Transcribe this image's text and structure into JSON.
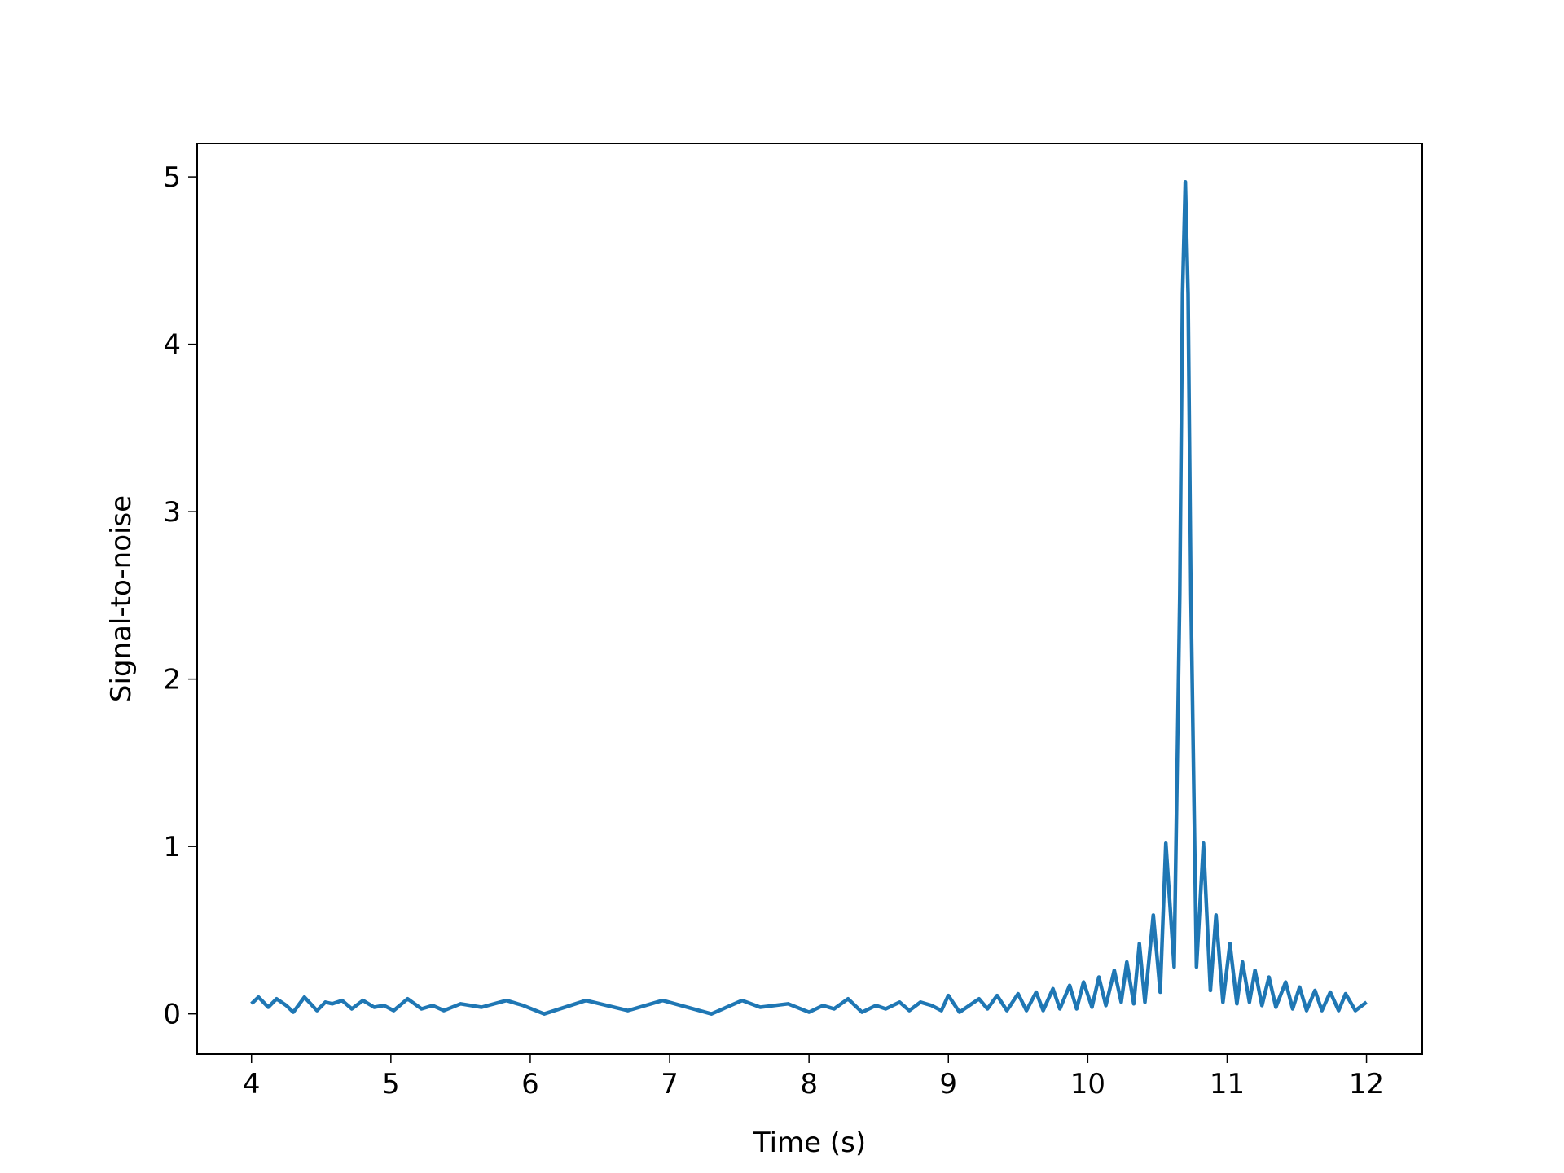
{
  "chart_data": {
    "type": "line",
    "xlabel": "Time (s)",
    "ylabel": "Signal-to-noise",
    "x": [
      4.0,
      4.05,
      4.12,
      4.18,
      4.25,
      4.3,
      4.38,
      4.47,
      4.53,
      4.58,
      4.65,
      4.72,
      4.8,
      4.88,
      4.95,
      5.02,
      5.12,
      5.22,
      5.3,
      5.38,
      5.5,
      5.65,
      5.83,
      5.95,
      6.1,
      6.4,
      6.7,
      6.95,
      7.3,
      7.52,
      7.65,
      7.85,
      8.0,
      8.1,
      8.18,
      8.28,
      8.38,
      8.48,
      8.55,
      8.65,
      8.72,
      8.8,
      8.88,
      8.95,
      9.0,
      9.08,
      9.15,
      9.22,
      9.28,
      9.35,
      9.42,
      9.5,
      9.56,
      9.63,
      9.68,
      9.75,
      9.8,
      9.87,
      9.92,
      9.97,
      10.03,
      10.08,
      10.13,
      10.19,
      10.24,
      10.28,
      10.33,
      10.37,
      10.41,
      10.47,
      10.52,
      10.56,
      10.62,
      10.66,
      10.68,
      10.7,
      10.72,
      10.74,
      10.78,
      10.83,
      10.88,
      10.92,
      10.97,
      11.02,
      11.07,
      11.11,
      11.16,
      11.2,
      11.25,
      11.3,
      11.35,
      11.42,
      11.47,
      11.52,
      11.57,
      11.63,
      11.68,
      11.74,
      11.8,
      11.85,
      11.92,
      12.0
    ],
    "series": [
      {
        "name": "Signal-to-noise",
        "color": "#1f77b4",
        "values": [
          0.06,
          0.1,
          0.04,
          0.09,
          0.05,
          0.01,
          0.1,
          0.02,
          0.07,
          0.06,
          0.08,
          0.03,
          0.08,
          0.04,
          0.05,
          0.02,
          0.09,
          0.03,
          0.05,
          0.02,
          0.06,
          0.04,
          0.08,
          0.05,
          0.0,
          0.08,
          0.02,
          0.08,
          0.0,
          0.08,
          0.04,
          0.06,
          0.01,
          0.05,
          0.03,
          0.09,
          0.01,
          0.05,
          0.03,
          0.07,
          0.02,
          0.07,
          0.05,
          0.02,
          0.11,
          0.01,
          0.05,
          0.09,
          0.03,
          0.11,
          0.02,
          0.12,
          0.02,
          0.13,
          0.02,
          0.15,
          0.03,
          0.17,
          0.03,
          0.19,
          0.04,
          0.22,
          0.05,
          0.26,
          0.07,
          0.31,
          0.06,
          0.42,
          0.07,
          0.59,
          0.13,
          1.02,
          0.28,
          2.5,
          4.3,
          4.97,
          4.3,
          2.5,
          0.28,
          1.02,
          0.14,
          0.59,
          0.07,
          0.42,
          0.06,
          0.31,
          0.07,
          0.26,
          0.05,
          0.22,
          0.04,
          0.19,
          0.03,
          0.16,
          0.02,
          0.14,
          0.02,
          0.13,
          0.02,
          0.12,
          0.02,
          0.07
        ]
      }
    ],
    "xlim": [
      3.61,
      12.4
    ],
    "xticks": [
      4,
      5,
      6,
      7,
      8,
      9,
      10,
      11,
      12
    ],
    "ylim": [
      -0.24,
      5.2
    ],
    "yticks": [
      0,
      1,
      2,
      3,
      4,
      5
    ]
  }
}
